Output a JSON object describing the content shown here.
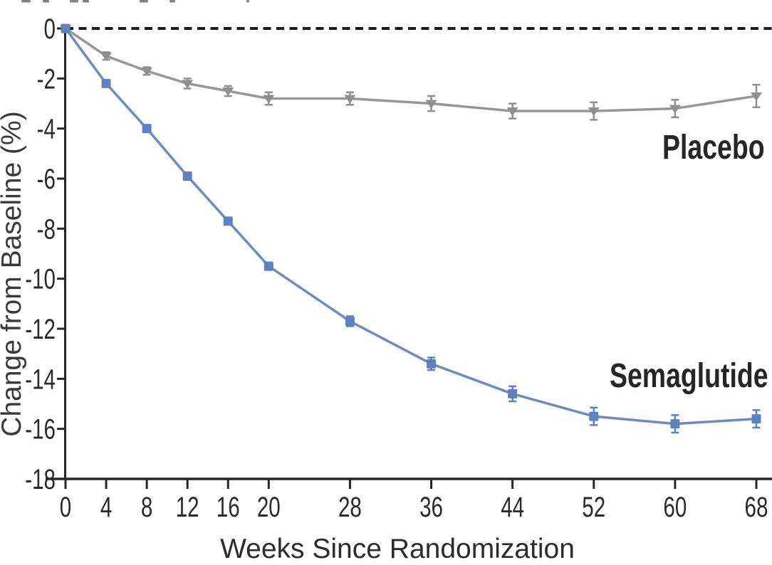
{
  "chart_data": {
    "type": "line",
    "title": "",
    "xlabel": "Weeks Since Randomization",
    "ylabel": "Change from Baseline (%)",
    "x": [
      0,
      4,
      8,
      12,
      16,
      20,
      28,
      36,
      44,
      52,
      60,
      68
    ],
    "xtick_labels": [
      "0",
      "4",
      "8",
      "12",
      "16",
      "20",
      "28",
      "36",
      "44",
      "52",
      "60",
      "68"
    ],
    "yticks": [
      0,
      -2,
      -4,
      -6,
      -8,
      -10,
      -12,
      -14,
      -16,
      -18
    ],
    "ytick_labels": [
      "0",
      "-2",
      "-4",
      "-6",
      "-8",
      "-10",
      "-12",
      "-14",
      "-16",
      "-18"
    ],
    "xlim": [
      0,
      69.6
    ],
    "ylim": [
      -18,
      0
    ],
    "grid": false,
    "legend_position": "inline-annotations",
    "axis_color": "#262626",
    "tick_label_color": "#2b2b2b",
    "zero_reference_line": {
      "y": 0,
      "style": "dashed",
      "color": "#1b1b1b"
    },
    "series": [
      {
        "name": "Semaglutide",
        "color": "#5d82c4",
        "line_color": "#6d8cc4",
        "marker": "square",
        "values": [
          0,
          -2.2,
          -4.0,
          -5.9,
          -7.7,
          -9.5,
          -11.7,
          -13.4,
          -14.6,
          -15.5,
          -15.8,
          -15.6
        ],
        "stderr": [
          0.1,
          0.1,
          0.1,
          0.1,
          0.1,
          0.15,
          0.2,
          0.25,
          0.3,
          0.35,
          0.35,
          0.35
        ]
      },
      {
        "name": "Placebo",
        "color": "#8f8f8f",
        "line_color": "#979797",
        "marker": "triangle-down",
        "values": [
          0,
          -1.1,
          -1.7,
          -2.2,
          -2.5,
          -2.8,
          -2.8,
          -3.0,
          -3.3,
          -3.3,
          -3.2,
          -2.7
        ],
        "stderr": [
          0.1,
          0.15,
          0.15,
          0.2,
          0.2,
          0.25,
          0.25,
          0.3,
          0.3,
          0.35,
          0.35,
          0.45
        ]
      }
    ]
  }
}
